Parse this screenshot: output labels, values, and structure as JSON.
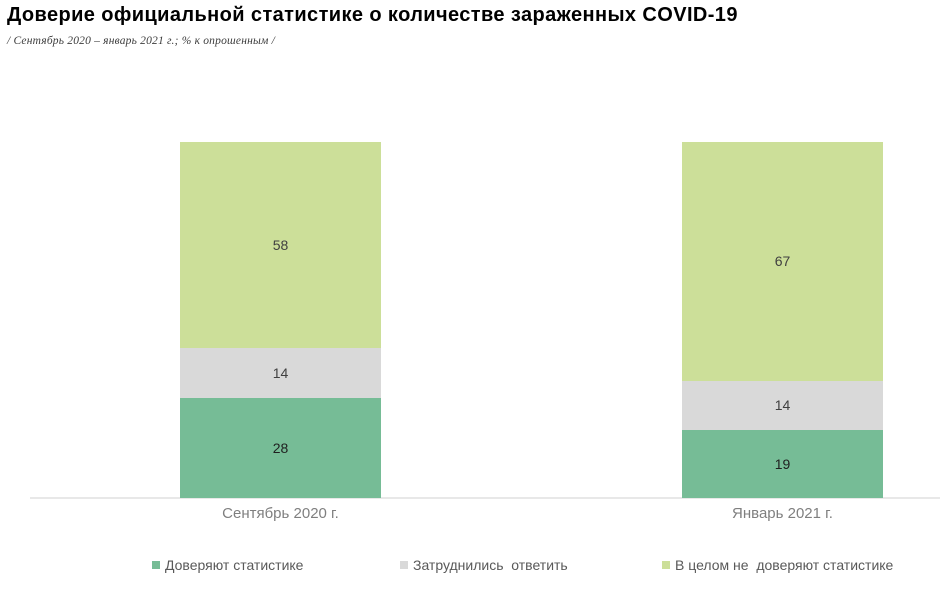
{
  "title": "Доверие официальной статистике о количестве зараженных COVID-19",
  "subtitle": "/ Сентябрь 2020 – январь 2021 г.; % к опрошенным /",
  "chart_data": {
    "type": "bar",
    "stacked": true,
    "orientation": "vertical",
    "title": "Доверие официальной статистике о количестве зараженных COVID-19",
    "subtitle": "/ Сентябрь 2020 – январь 2021 г.; % к опрошенным /",
    "categories": [
      "Сентябрь 2020 г.",
      "Январь 2021 г."
    ],
    "series": [
      {
        "name": "Доверяют статистике",
        "values": [
          28,
          19
        ],
        "color": "#76BC96",
        "label_color": "#1f1f1f"
      },
      {
        "name": "Затруднились  ответить",
        "values": [
          14,
          14
        ],
        "color": "#D9D9D9",
        "label_color": "#404040"
      },
      {
        "name": "В целом не  доверяют статистике",
        "values": [
          58,
          67
        ],
        "color": "#CCDF99",
        "label_color": "#404040"
      }
    ],
    "ylim": [
      0,
      100
    ],
    "grid": false,
    "data_labels": true,
    "legend_position": "bottom",
    "axis_line_color": "#E8E8E8",
    "category_label_color": "#7F7F7F",
    "legend_label_color": "#595959"
  }
}
